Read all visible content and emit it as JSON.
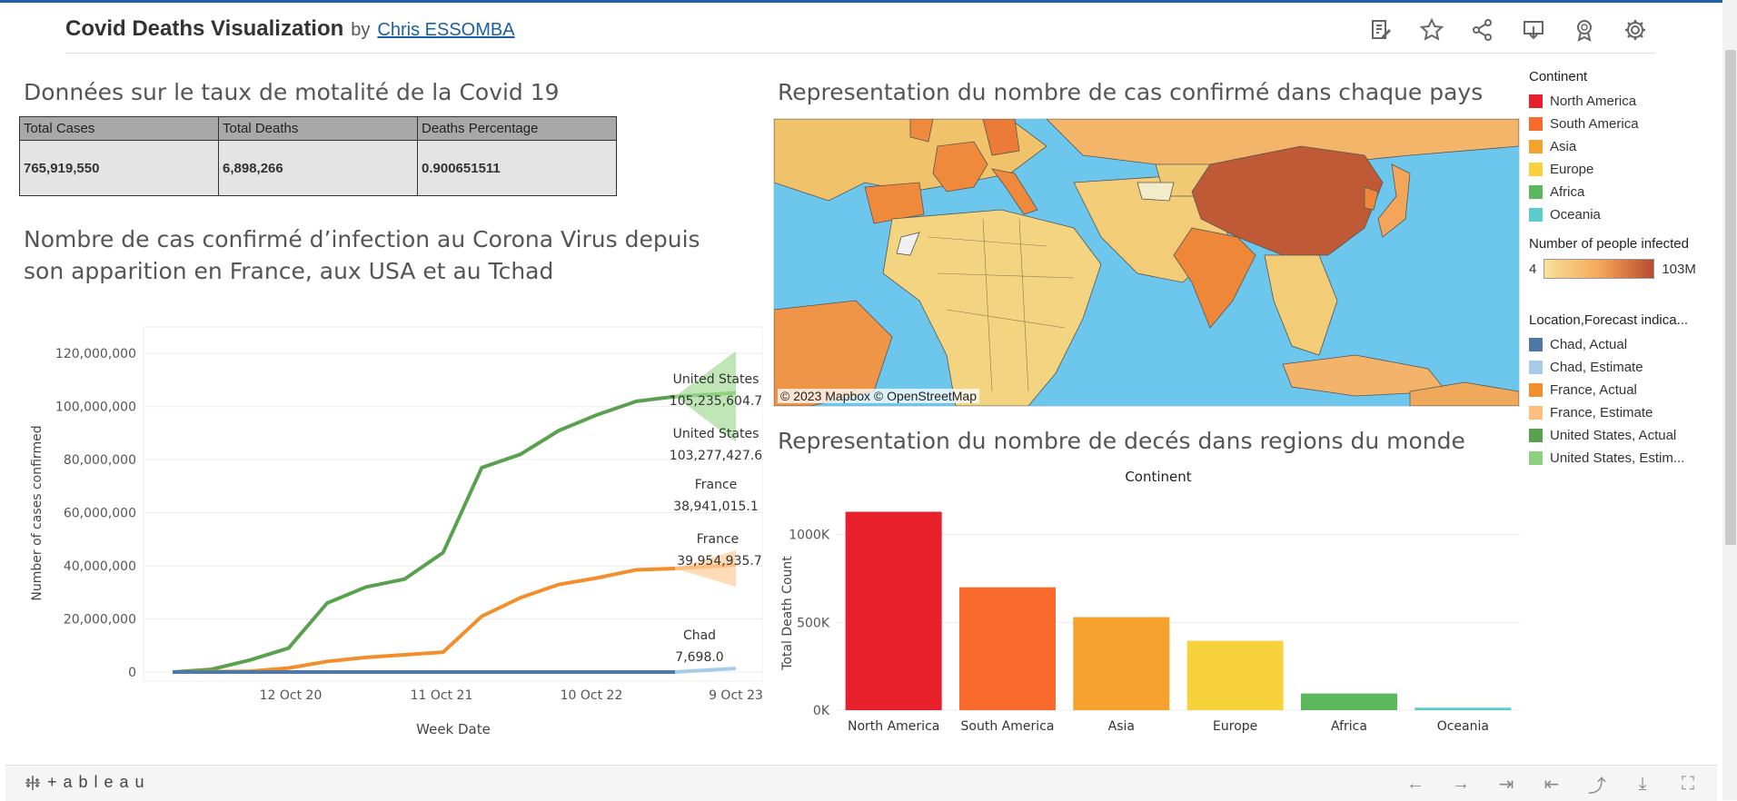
{
  "header": {
    "title": "Covid Deaths Visualization",
    "by": "by",
    "author": "Chris ESSOMBA"
  },
  "toolbar": {
    "icons": [
      "edit-icon",
      "star-icon",
      "share-icon",
      "download-icon",
      "badge-icon",
      "gear-icon"
    ]
  },
  "kpi": {
    "title": "Données sur le taux de motalité de la Covid 19",
    "headers": [
      "Total Cases",
      "Total Deaths",
      "Deaths Percentage"
    ],
    "values": [
      "765,919,550",
      "6,898,266",
      "0.900651511"
    ]
  },
  "line_chart_title": "Nombre de cas confirmé d’infection au Corona Virus depuis son apparition en France, aux USA et au Tchad",
  "map": {
    "title": "Representation du nombre de cas confirmé dans chaque pays",
    "attribution": "© 2023 Mapbox  © OpenStreetMap"
  },
  "bar_chart_title": "Representation du nombre de decés dans regions du monde",
  "legend": {
    "continent_title": "Continent",
    "continents": [
      {
        "label": "North America",
        "color": "#e8202c"
      },
      {
        "label": "South America",
        "color": "#f96b2c"
      },
      {
        "label": "Asia",
        "color": "#f4a22d"
      },
      {
        "label": "Europe",
        "color": "#f7d23d"
      },
      {
        "label": "Africa",
        "color": "#5cb85c"
      },
      {
        "label": "Oceania",
        "color": "#5bcbcb"
      }
    ],
    "infected_title": "Number of people infected",
    "infected_min": "4",
    "infected_max": "103M",
    "location_title": "Location,Forecast indica...",
    "locations": [
      {
        "label": "Chad, Actual",
        "color": "#4e79a7"
      },
      {
        "label": "Chad, Estimate",
        "color": "#a8cce8"
      },
      {
        "label": "France, Actual",
        "color": "#f28e2b"
      },
      {
        "label": "France, Estimate",
        "color": "#ffbe7d"
      },
      {
        "label": "United States, Actual",
        "color": "#59a14f"
      },
      {
        "label": "United States, Estim...",
        "color": "#8cd17d"
      }
    ]
  },
  "chart_data": [
    {
      "type": "line",
      "ylabel": "Number of cases confirmed",
      "xlabel": "Week Date",
      "x_ticks": [
        "12 Oct 20",
        "11 Oct 21",
        "10 Oct 22",
        "9 Oct 23"
      ],
      "y_ticks": [
        "0",
        "20,000,000",
        "40,000,000",
        "60,000,000",
        "80,000,000",
        "100,000,000",
        "120,000,000"
      ],
      "ylim": [
        0,
        130000000
      ],
      "x": [
        "2020-01",
        "2020-04",
        "2020-07",
        "2020-10",
        "2021-01",
        "2021-04",
        "2021-07",
        "2021-10",
        "2022-01",
        "2022-04",
        "2022-07",
        "2022-10",
        "2023-01",
        "2023-03"
      ],
      "series": [
        {
          "name": "United States, Actual",
          "values": [
            0,
            1000000,
            4500000,
            9000000,
            26000000,
            32000000,
            35000000,
            45000000,
            77000000,
            82000000,
            91000000,
            97000000,
            102000000,
            103800000
          ]
        },
        {
          "name": "France, Actual",
          "values": [
            0,
            150000,
            300000,
            1500000,
            4000000,
            5500000,
            6500000,
            7500000,
            21000000,
            28000000,
            33000000,
            35500000,
            38500000,
            39000000
          ]
        },
        {
          "name": "Chad, Actual",
          "values": [
            0,
            500,
            900,
            1400,
            2500,
            4800,
            5000,
            5100,
            7000,
            7300,
            7500,
            7600,
            7690,
            7698
          ]
        }
      ],
      "annotations": [
        {
          "series": "United States",
          "label": "United States",
          "value": "105,235,604.7"
        },
        {
          "series": "United States",
          "label": "United States",
          "value": "103,277,427.6"
        },
        {
          "series": "France",
          "label": "France",
          "value": "38,941,015.1"
        },
        {
          "series": "France",
          "label": "France",
          "value": "39,954,935.7"
        },
        {
          "series": "Chad",
          "label": "Chad",
          "value": "7,698.0"
        }
      ]
    },
    {
      "type": "bar",
      "title": "Continent",
      "ylabel": "Total Death Count",
      "categories": [
        "North America",
        "South America",
        "Asia",
        "Europe",
        "Africa",
        "Oceania"
      ],
      "values": [
        1130000,
        700000,
        530000,
        395000,
        95000,
        14000
      ],
      "colors": [
        "#e8202c",
        "#f96b2c",
        "#f4a22d",
        "#f7d23d",
        "#5cb85c",
        "#5bcbcb"
      ],
      "y_ticks": [
        "0K",
        "500K",
        "1000K"
      ],
      "ylim": [
        0,
        1200000
      ]
    }
  ],
  "bottom": {
    "logo": "+ableau"
  }
}
